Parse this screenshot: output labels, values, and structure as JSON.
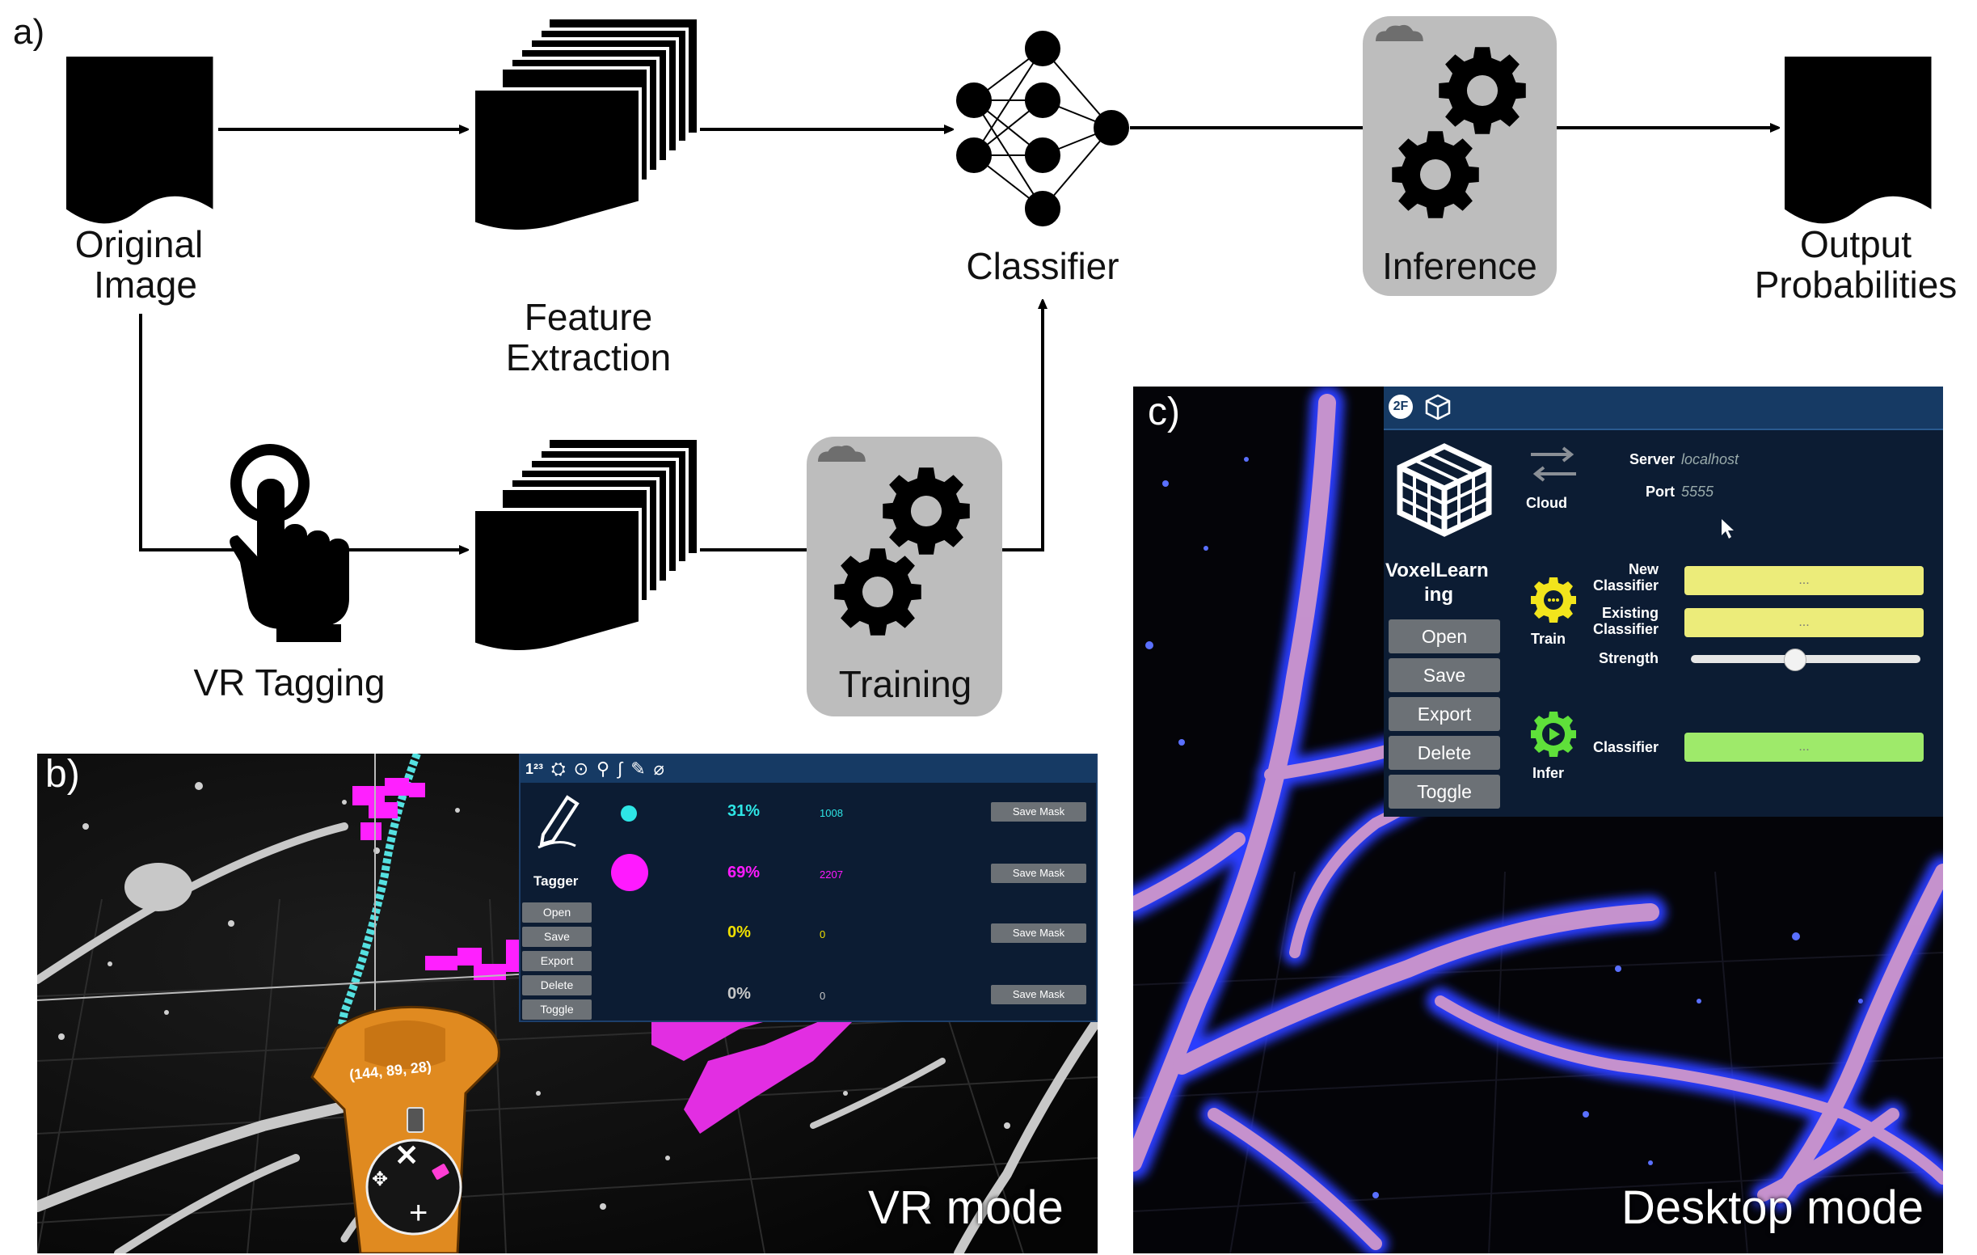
{
  "panel_labels": {
    "a": "a)",
    "b": "b)",
    "c": "c)"
  },
  "pipeline": {
    "original_image": [
      "Original",
      "Image"
    ],
    "feature_extraction": [
      "Feature",
      "Extraction"
    ],
    "classifier": "Classifier",
    "inference": "Inference",
    "output_probabilities": [
      "Output",
      "Probabilities"
    ],
    "vr_tagging": "VR Tagging",
    "training": "Training"
  },
  "vr_panel": {
    "mode_label": "VR mode",
    "toolbar_icons": [
      "numbers-icon",
      "satellite-icon",
      "pointer-icon",
      "search-icon",
      "lasso-icon",
      "pen-icon",
      "eraser-icon"
    ],
    "toolbar_number_glyph": "1²³",
    "tool_name": "Tagger",
    "buttons": [
      "Open",
      "Save",
      "Export",
      "Delete",
      "Toggle"
    ],
    "save_mask_label": "Save Mask",
    "rows": [
      {
        "color": "#2ee6e6",
        "percent": "31%",
        "count": "1008",
        "dot": "small"
      },
      {
        "color": "#ff1aff",
        "percent": "69%",
        "count": "2207",
        "dot": "large"
      },
      {
        "color": "#f0e000",
        "percent": "0%",
        "count": "0",
        "dot": "none"
      },
      {
        "color": "#c8c8c8",
        "percent": "0%",
        "count": "0",
        "dot": "none"
      }
    ],
    "controller_coords": "(144, 89, 28)"
  },
  "desktop_panel": {
    "mode_label": "Desktop mode",
    "toolbar_badge": "2F",
    "app_name": [
      "VoxelLearn",
      "ing"
    ],
    "buttons": [
      "Open",
      "Save",
      "Export",
      "Delete",
      "Toggle"
    ],
    "cloud_label": "Cloud",
    "train_label": "Train",
    "infer_label": "Infer",
    "server_label": "Server",
    "server_value": "localhost",
    "port_label": "Port",
    "port_value": "5555",
    "new_classifier_label": [
      "New",
      "Classifier"
    ],
    "existing_classifier_label": [
      "Existing",
      "Classifier"
    ],
    "strength_label": "Strength",
    "strength_value": 0.45,
    "classifier_label": "Classifier",
    "field_placeholder": "...",
    "colors": {
      "yellow_field": "#ecec7a",
      "green_field": "#9eea6a",
      "gear": "#f2e41c",
      "play": "#5fe03a"
    }
  }
}
